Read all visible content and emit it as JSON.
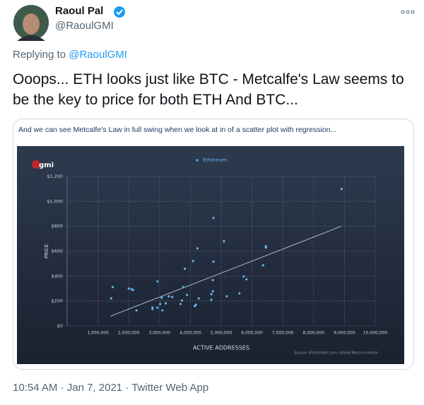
{
  "tweet": {
    "author_name": "Raoul Pal",
    "handle": "@RaoulGMI",
    "replying_to_label": "Replying to",
    "replying_to_handle": "@RaoulGMI",
    "text": "Ooops... ETH looks just like BTC - Metcalfe's Law seems to be the key to price for both ETH And BTC...",
    "card_caption": "And we can see Metcalfe's Law in full swing when we look at in of a scatter plot with regression...",
    "time": "10:54 AM",
    "date": "Jan 7, 2021",
    "source_app": "Twitter Web App"
  },
  "chart_data": {
    "type": "scatter",
    "logo": "gmi",
    "xlabel": "ACTIVE ADDRESSES",
    "ylabel": "PRICE",
    "source_note": "Source: Blockchain.com– Global Macro Investor",
    "xlim": [
      0,
      10000000
    ],
    "ylim": [
      0,
      1200
    ],
    "xticks": [
      {
        "value": 1000000,
        "label": "1,000,000"
      },
      {
        "value": 2000000,
        "label": "2,000,000"
      },
      {
        "value": 3000000,
        "label": "3,000,000"
      },
      {
        "value": 4000000,
        "label": "4,000,000"
      },
      {
        "value": 5000000,
        "label": "5,000,000"
      },
      {
        "value": 6000000,
        "label": "6,000,000"
      },
      {
        "value": 7000000,
        "label": "7,000,000"
      },
      {
        "value": 8000000,
        "label": "8,000,000"
      },
      {
        "value": 9000000,
        "label": "9,000,000"
      },
      {
        "value": 10000000,
        "label": "10,000,000"
      }
    ],
    "yticks": [
      {
        "value": 0,
        "label": "$0"
      },
      {
        "value": 200,
        "label": "$200"
      },
      {
        "value": 400,
        "label": "$400"
      },
      {
        "value": 600,
        "label": "$600"
      },
      {
        "value": 800,
        "label": "$800"
      },
      {
        "value": 1000,
        "label": "$1,000"
      },
      {
        "value": 1200,
        "label": "$1,200"
      }
    ],
    "grid": true,
    "legend": "top",
    "series": [
      {
        "name": "Ethereum",
        "color": "#63b3ee",
        "x": [
          1480000,
          1430000,
          2000000,
          2090000,
          2140000,
          2250000,
          2770000,
          2770000,
          2930000,
          2930000,
          3020000,
          3070000,
          3090000,
          3200000,
          3300000,
          3410000,
          3680000,
          3730000,
          3770000,
          3820000,
          3890000,
          4090000,
          4140000,
          4180000,
          4230000,
          4270000,
          4680000,
          4730000,
          4750000,
          4750000,
          4680000,
          4730000,
          5090000,
          5180000,
          5590000,
          5730000,
          5820000,
          6360000,
          6450000,
          6450000,
          8910000
        ],
        "values": [
          312,
          221,
          300,
          295,
          289,
          125,
          147,
          136,
          357,
          147,
          176,
          227,
          125,
          181,
          238,
          232,
          176,
          204,
          312,
          459,
          249,
          521,
          159,
          170,
          623,
          221,
          255,
          368,
          516,
          867,
          210,
          278,
          680,
          238,
          261,
          397,
          374,
          487,
          629,
          640,
          1099
        ]
      }
    ],
    "regression_line": {
      "x": [
        1410000,
        8890000
      ],
      "values": [
        79,
        799
      ]
    }
  }
}
